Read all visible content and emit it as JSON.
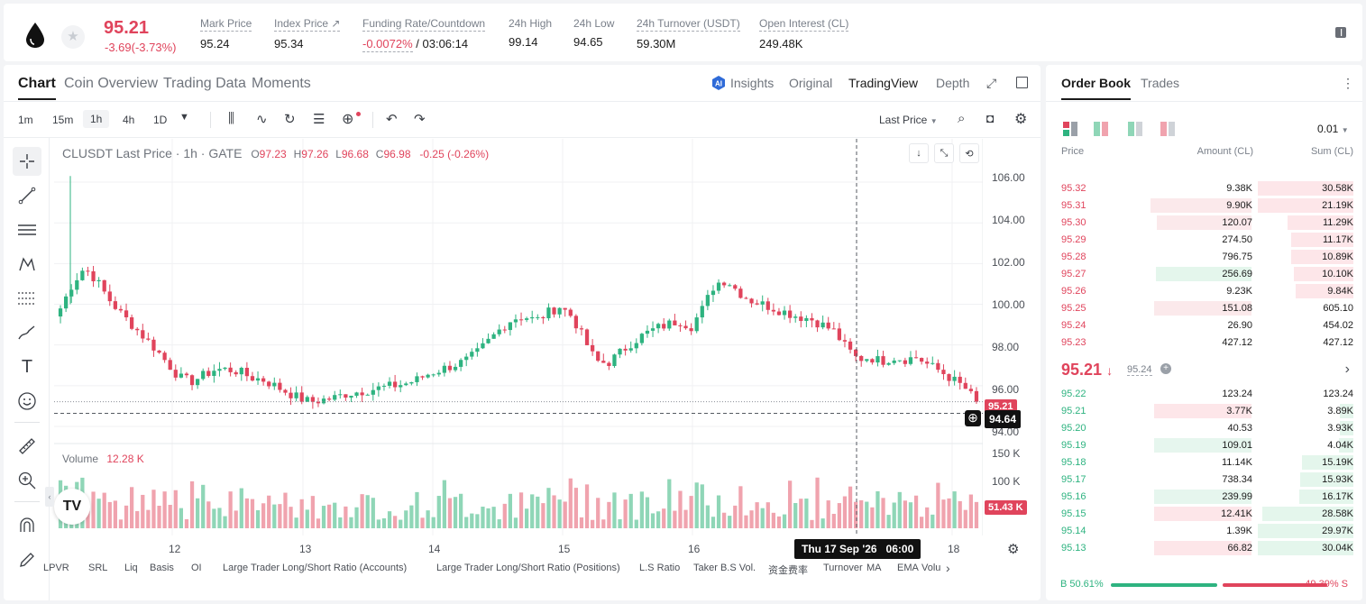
{
  "ticker": {
    "last_price": "95.21",
    "change": "-3.69(-3.73%)",
    "stats": [
      {
        "label": "Mark Price",
        "value": "95.24"
      },
      {
        "label": "Index Price ↗",
        "value": "95.34"
      },
      {
        "label": "Funding Rate/Countdown",
        "value_a": "-0.0072%",
        "value_b": " / 03:06:14"
      },
      {
        "label": "24h High",
        "value": "99.14"
      },
      {
        "label": "24h Low",
        "value": "94.65"
      },
      {
        "label": "24h Turnover (USDT)",
        "value": "59.30M"
      },
      {
        "label": "Open Interest (CL)",
        "value": "249.48K"
      }
    ]
  },
  "chart_tabs": [
    "Chart",
    "Coin Overview",
    "Trading Data",
    "Moments"
  ],
  "view_options": [
    "Insights",
    "Original",
    "TradingView",
    "Depth"
  ],
  "intervals": [
    "1m",
    "15m",
    "1h",
    "4h",
    "1D"
  ],
  "price_type": "Last Price",
  "legend": {
    "symbol": "CLUSDT Last Price · 1h · GATE",
    "o_label": "O",
    "o": "97.23",
    "h_label": "H",
    "h": "97.26",
    "l_label": "L",
    "l": "96.68",
    "c_label": "C",
    "c": "96.98",
    "chg": "-0.25 (-0.26%)"
  },
  "volume_legend": {
    "label": "Volume",
    "value": "12.28 K"
  },
  "crosshair": {
    "time_label": "Thu 17 Sep '26   06:00",
    "price_label": "94.64"
  },
  "price_tags": {
    "last": "95.21",
    "volume": "51.43 K"
  },
  "colors": {
    "up": "#2eb380",
    "down": "#e0445c",
    "up_light": "#8fd6b7",
    "down_light": "#f0a3ae"
  },
  "indicators": [
    "LPVR",
    "SRL",
    "Liq",
    "Basis",
    "OI",
    "Large Trader Long/Short Ratio (Accounts)",
    "Large Trader Long/Short Ratio (Positions)",
    "L.S Ratio",
    "Taker B.S Vol.",
    "资金费率",
    "Turnover",
    "MA",
    "EMA",
    "Volu"
  ],
  "chart_data": {
    "type": "candlestick",
    "y_axis_ticks": [
      "106.00",
      "104.00",
      "102.00",
      "100.00",
      "98.00",
      "96.00",
      "94.00"
    ],
    "ylim": [
      93.6,
      106.8
    ],
    "x_axis_ticks": [
      "12",
      "13",
      "14",
      "15",
      "16",
      "18"
    ],
    "volume_axis_ticks": [
      "150 K",
      "100 K"
    ],
    "close_path": [
      99.8,
      101.0,
      101.8,
      101.2,
      100.3,
      99.6,
      99.0,
      98.4,
      97.8,
      97.1,
      96.4,
      96.2,
      96.5,
      96.8,
      96.8,
      96.7,
      96.4,
      96.3,
      96.0,
      95.7,
      95.4,
      95.2,
      95.3,
      95.4,
      95.6,
      95.7,
      95.8,
      95.9,
      96.0,
      96.1,
      96.3,
      96.6,
      96.8,
      97.0,
      97.2,
      97.6,
      98.2,
      98.8,
      99.3,
      99.4,
      99.2,
      99.6,
      99.9,
      99.4,
      98.3,
      97.2,
      97.1,
      97.6,
      98.1,
      98.5,
      98.8,
      99.0,
      99.2,
      98.9,
      99.8,
      101.0,
      101.2,
      100.6,
      100.2,
      100.0,
      99.8,
      99.6,
      99.4,
      99.3,
      99.0,
      98.7,
      97.9,
      97.3,
      97.4,
      97.2,
      97.4,
      97.3,
      97.4,
      97.0,
      96.7,
      96.3,
      95.9,
      95.21
    ]
  },
  "order_book": {
    "tabs": [
      "Order Book",
      "Trades"
    ],
    "precision": "0.01",
    "headers": [
      "Price",
      "Amount (CL)",
      "Sum (CL)"
    ],
    "asks": [
      {
        "price": "95.32",
        "amount": "9.38K",
        "sum": "30.58K",
        "depth": 1.0,
        "amt_w": 0.0
      },
      {
        "price": "95.31",
        "amount": "9.90K",
        "sum": "21.19K",
        "depth": 1.0,
        "amt_w": 0.79
      },
      {
        "price": "95.30",
        "amount": "120.07",
        "sum": "11.29K",
        "depth": 0.69,
        "amt_w": 0.74
      },
      {
        "price": "95.29",
        "amount": "274.50",
        "sum": "11.17K",
        "depth": 0.65,
        "amt_w": 0.0
      },
      {
        "price": "95.28",
        "amount": "796.75",
        "sum": "10.89K",
        "depth": 0.65,
        "amt_w": 0.0
      },
      {
        "price": "95.27",
        "amount": "256.69",
        "sum": "10.10K",
        "depth": 0.62,
        "amt_w": 0.75,
        "amt_green": true
      },
      {
        "price": "95.26",
        "amount": "9.23K",
        "sum": "9.84K",
        "depth": 0.6,
        "amt_w": 0.0
      },
      {
        "price": "95.25",
        "amount": "151.08",
        "sum": "605.10",
        "depth": 0.0,
        "amt_w": 0.76
      },
      {
        "price": "95.24",
        "amount": "26.90",
        "sum": "454.02",
        "depth": 0.0,
        "amt_w": 0.0
      },
      {
        "price": "95.23",
        "amount": "427.12",
        "sum": "427.12",
        "depth": 0.0,
        "amt_w": 0.0
      }
    ],
    "mid": {
      "price": "95.21",
      "arrow": "↓",
      "mark": "95.24"
    },
    "bids": [
      {
        "price": "95.22",
        "amount": "123.24",
        "sum": "123.24",
        "depth": 0.0,
        "amt_w": 0.0
      },
      {
        "price": "95.21",
        "amount": "3.77K",
        "sum": "3.89K",
        "depth": 0.14,
        "amt_w": 0.76,
        "amt_red": true
      },
      {
        "price": "95.20",
        "amount": "40.53",
        "sum": "3.93K",
        "depth": 0.14,
        "amt_w": 0.0
      },
      {
        "price": "95.19",
        "amount": "109.01",
        "sum": "4.04K",
        "depth": 0.15,
        "amt_w": 0.76
      },
      {
        "price": "95.18",
        "amount": "11.14K",
        "sum": "15.19K",
        "depth": 0.54,
        "amt_w": 0.0
      },
      {
        "price": "95.17",
        "amount": "738.34",
        "sum": "15.93K",
        "depth": 0.56,
        "amt_w": 0.0
      },
      {
        "price": "95.16",
        "amount": "239.99",
        "sum": "16.17K",
        "depth": 0.57,
        "amt_w": 0.76
      },
      {
        "price": "95.15",
        "amount": "12.41K",
        "sum": "28.58K",
        "depth": 0.95,
        "amt_w": 0.76,
        "amt_red": true
      },
      {
        "price": "95.14",
        "amount": "1.39K",
        "sum": "29.97K",
        "depth": 1.0,
        "amt_w": 0.0
      },
      {
        "price": "95.13",
        "amount": "66.82",
        "sum": "30.04K",
        "depth": 1.0,
        "amt_w": 0.76,
        "amt_red": true
      }
    ],
    "buy_ratio": "B 50.61%",
    "sell_ratio": "49.39% S",
    "buy_fraction": 0.5061
  }
}
